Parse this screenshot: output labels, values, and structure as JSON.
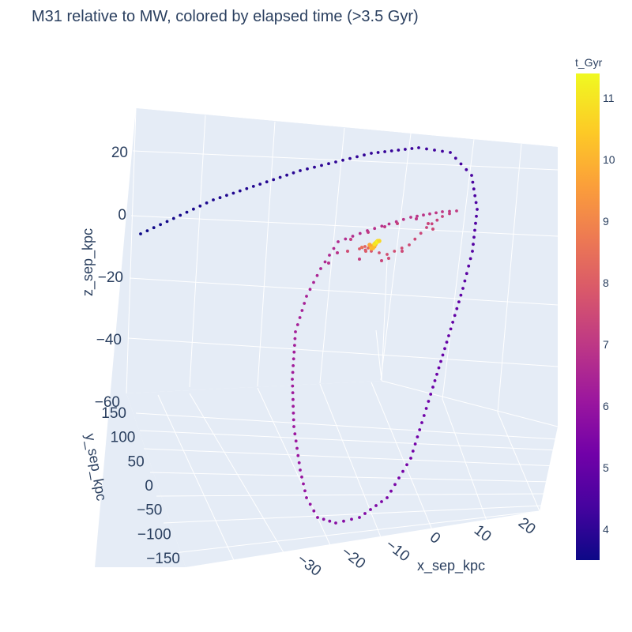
{
  "chart_data": {
    "type": "scatter3d",
    "title": "M31 relative to MW, colored by elapsed time (>3.5 Gyr)",
    "axes": {
      "x": {
        "label": "x_sep_kpc",
        "ticks": [
          -30,
          -20,
          -10,
          0,
          10,
          20
        ],
        "tick_labels": [
          "−30",
          "−20",
          "−10",
          "0",
          "10",
          "20"
        ]
      },
      "y": {
        "label": "y_sep_kpc",
        "ticks": [
          -150,
          -100,
          -50,
          0,
          50,
          100,
          150
        ],
        "tick_labels": [
          "−150",
          "−100",
          "−50",
          "0",
          "50",
          "100",
          "150"
        ]
      },
      "z": {
        "label": "z_sep_kpc",
        "ticks": [
          -60,
          -40,
          -20,
          0,
          20
        ],
        "tick_labels": [
          "−60",
          "−40",
          "−20",
          "0",
          "20"
        ]
      }
    },
    "colorbar": {
      "title": "t_Gyr",
      "range": [
        3.5,
        11.4
      ],
      "ticks": [
        4,
        5,
        6,
        7,
        8,
        9,
        10,
        11
      ],
      "colorscale": [
        "#0d0887",
        "#46039f",
        "#7201a8",
        "#9c179e",
        "#bd3786",
        "#d8576b",
        "#ed7953",
        "#fb9f3a",
        "#fdca26",
        "#f0f921"
      ]
    },
    "grid": true,
    "background": "#e5ecf6",
    "trajectory_samples": [
      {
        "t": 3.5,
        "x": -35,
        "y": 150,
        "z": 5
      },
      {
        "t": 3.9,
        "x": -12,
        "y": 120,
        "z": 20
      },
      {
        "t": 4.2,
        "x": 8,
        "y": 90,
        "z": 22
      },
      {
        "t": 4.4,
        "x": 18,
        "y": 60,
        "z": 10
      },
      {
        "t": 4.7,
        "x": 22,
        "y": 20,
        "z": -20
      },
      {
        "t": 5.0,
        "x": 15,
        "y": -30,
        "z": -50
      },
      {
        "t": 5.3,
        "x": 0,
        "y": -70,
        "z": -62
      },
      {
        "t": 5.5,
        "x": -12,
        "y": -95,
        "z": -60
      },
      {
        "t": 5.7,
        "x": -20,
        "y": -90,
        "z": -30
      },
      {
        "t": 6.0,
        "x": -15,
        "y": -40,
        "z": -10
      },
      {
        "t": 6.4,
        "x": -2,
        "y": 10,
        "z": 3
      },
      {
        "t": 6.8,
        "x": 12,
        "y": 40,
        "z": 8
      },
      {
        "t": 7.2,
        "x": 5,
        "y": 20,
        "z": 2
      },
      {
        "t": 7.8,
        "x": -4,
        "y": 5,
        "z": 0
      },
      {
        "t": 8.6,
        "x": -2,
        "y": 2,
        "z": 0
      },
      {
        "t": 9.5,
        "x": -1,
        "y": 1,
        "z": 0
      },
      {
        "t": 10.5,
        "x": 0,
        "y": 0,
        "z": 0
      },
      {
        "t": 11.4,
        "x": 0,
        "y": 0,
        "z": 0
      }
    ]
  }
}
